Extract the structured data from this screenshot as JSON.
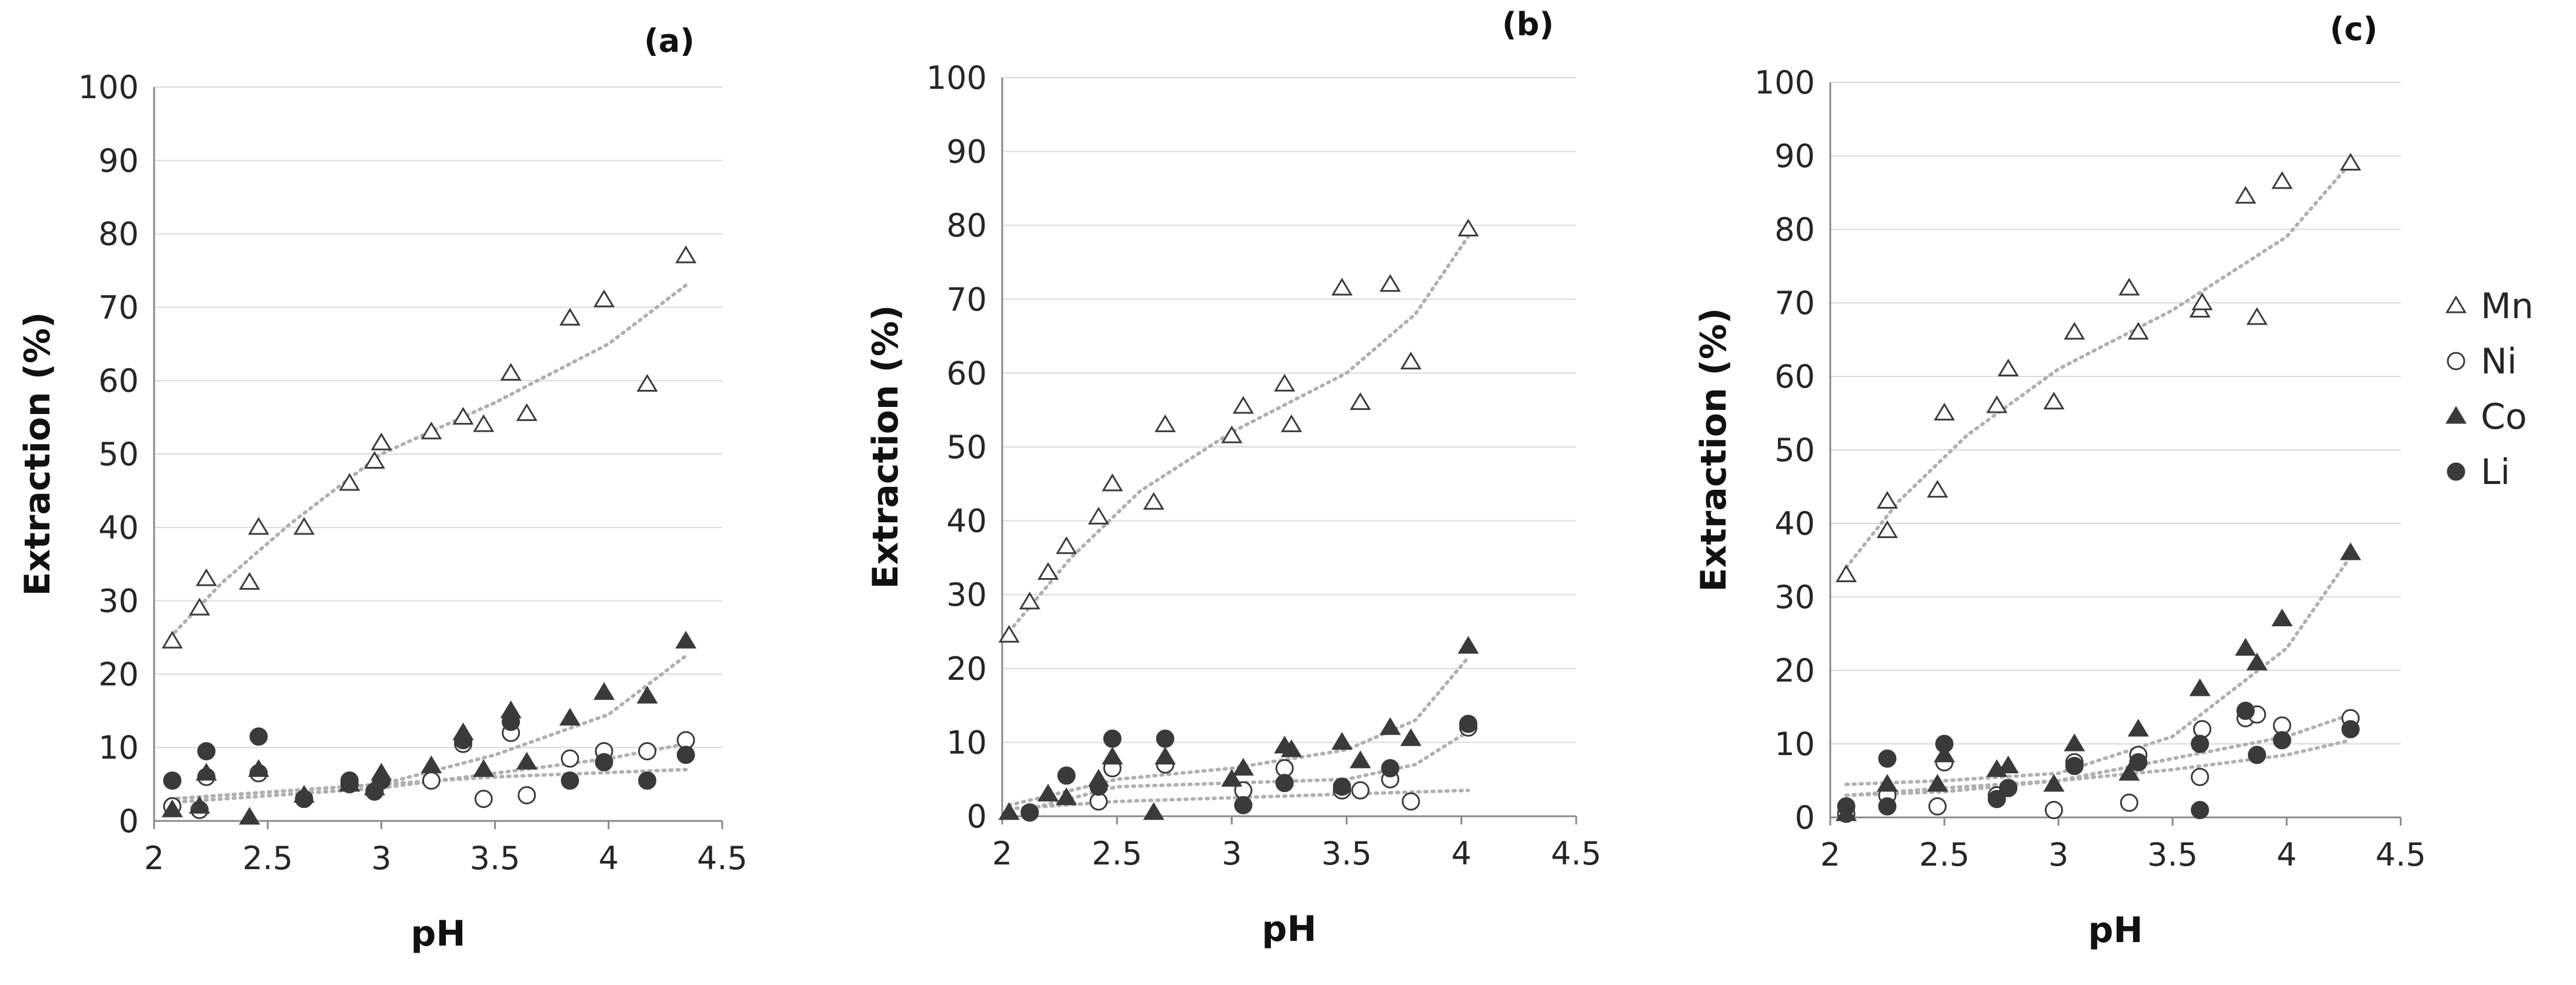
{
  "legend": {
    "entries": [
      {
        "label": "Mn",
        "marker": "open-triangle"
      },
      {
        "label": "Ni",
        "marker": "open-circle"
      },
      {
        "label": "Co",
        "marker": "filled-triangle"
      },
      {
        "label": "Li",
        "marker": "filled-circle"
      }
    ]
  },
  "colors": {
    "marker": "#3a3a3a",
    "trendline": "#b0b0b0",
    "grid": "#d9d9d9",
    "axis": "#888888"
  },
  "chart_data": [
    {
      "type": "scatter",
      "panel_label": "(a)",
      "xlabel": "pH",
      "ylabel": "Extraction (%)",
      "xlim": [
        2,
        4.5
      ],
      "ylim": [
        0,
        100
      ],
      "xticks": [
        2,
        2.5,
        3,
        3.5,
        4,
        4.5
      ],
      "yticks": [
        0,
        10,
        20,
        30,
        40,
        50,
        60,
        70,
        80,
        90,
        100
      ],
      "grid": "horizontal",
      "trendlines": "dotted polynomial",
      "series": [
        {
          "name": "Mn",
          "x": [
            2.08,
            2.2,
            2.23,
            2.42,
            2.46,
            2.66,
            2.86,
            2.97,
            3.0,
            3.22,
            3.36,
            3.45,
            3.57,
            3.64,
            3.83,
            3.98,
            4.17,
            4.34
          ],
          "y": [
            24.5,
            29,
            33,
            32.5,
            40,
            40,
            46,
            49,
            51.5,
            53,
            55,
            54,
            61,
            55.5,
            68.5,
            71,
            59.5,
            77
          ]
        },
        {
          "name": "Ni",
          "x": [
            2.08,
            2.2,
            2.23,
            2.46,
            2.66,
            2.86,
            2.97,
            3.0,
            3.22,
            3.36,
            3.45,
            3.57,
            3.64,
            3.83,
            3.98,
            4.17,
            4.34
          ],
          "y": [
            2,
            1.5,
            6,
            6.5,
            3,
            5,
            4,
            5.5,
            5.5,
            10.5,
            3,
            12,
            3.5,
            8.5,
            9.5,
            9.5,
            11
          ]
        },
        {
          "name": "Co",
          "x": [
            2.08,
            2.2,
            2.23,
            2.42,
            2.46,
            2.66,
            2.86,
            2.97,
            3.0,
            3.22,
            3.36,
            3.45,
            3.57,
            3.64,
            3.83,
            3.98,
            4.17,
            4.34
          ],
          "y": [
            1.5,
            2,
            6.5,
            0.5,
            7,
            3.5,
            5,
            4.5,
            6.5,
            7.5,
            12,
            7,
            15,
            8,
            14,
            17.5,
            17,
            24.5
          ]
        },
        {
          "name": "Li",
          "x": [
            2.08,
            2.23,
            2.46,
            2.66,
            2.86,
            2.97,
            3.0,
            3.36,
            3.57,
            3.83,
            3.98,
            4.17,
            4.34
          ],
          "y": [
            5.5,
            9.5,
            11.5,
            3,
            5.5,
            4,
            5.5,
            11,
            13.5,
            5.5,
            8,
            5.5,
            9
          ]
        }
      ],
      "trends": {
        "Mn": [
          [
            2.07,
            25
          ],
          [
            2.3,
            32.5
          ],
          [
            2.6,
            40.5
          ],
          [
            3.0,
            50
          ],
          [
            3.5,
            57
          ],
          [
            4.0,
            65
          ],
          [
            4.34,
            73
          ]
        ],
        "Co": [
          [
            2.07,
            3
          ],
          [
            3.0,
            5
          ],
          [
            3.5,
            9
          ],
          [
            4.0,
            14.5
          ],
          [
            4.34,
            22.5
          ]
        ],
        "Ni": [
          [
            2.07,
            2.5
          ],
          [
            3.0,
            4.5
          ],
          [
            3.5,
            6.5
          ],
          [
            4.0,
            8.5
          ],
          [
            4.34,
            10.5
          ]
        ],
        "Li": [
          [
            2.07,
            3
          ],
          [
            3.0,
            5
          ],
          [
            3.5,
            6
          ],
          [
            4.34,
            7
          ]
        ]
      }
    },
    {
      "type": "scatter",
      "panel_label": "(b)",
      "xlabel": "pH",
      "ylabel": "Extraction (%)",
      "xlim": [
        2,
        4.5
      ],
      "ylim": [
        0,
        100
      ],
      "xticks": [
        2,
        2.5,
        3,
        3.5,
        4,
        4.5
      ],
      "yticks": [
        0,
        10,
        20,
        30,
        40,
        50,
        60,
        70,
        80,
        90,
        100
      ],
      "grid": "horizontal",
      "trendlines": "dotted polynomial",
      "series": [
        {
          "name": "Mn",
          "x": [
            2.03,
            2.12,
            2.2,
            2.28,
            2.42,
            2.48,
            2.66,
            2.71,
            3.0,
            3.05,
            3.23,
            3.26,
            3.48,
            3.56,
            3.69,
            3.78,
            4.03
          ],
          "y": [
            24.5,
            29,
            33,
            36.5,
            40.5,
            45,
            42.5,
            53,
            51.5,
            55.5,
            58.5,
            53,
            71.5,
            56,
            72,
            61.5,
            79.5
          ]
        },
        {
          "name": "Ni",
          "x": [
            2.12,
            2.42,
            2.48,
            2.71,
            3.05,
            3.23,
            3.48,
            3.56,
            3.69,
            3.78,
            4.03
          ],
          "y": [
            0.5,
            2,
            6.5,
            7,
            3.5,
            6.5,
            3.5,
            3.5,
            5,
            2,
            12
          ]
        },
        {
          "name": "Co",
          "x": [
            2.03,
            2.2,
            2.28,
            2.42,
            2.48,
            2.66,
            2.71,
            3.0,
            3.05,
            3.23,
            3.26,
            3.48,
            3.56,
            3.69,
            3.78,
            4.03
          ],
          "y": [
            0.5,
            3,
            2.5,
            5,
            8,
            0.5,
            8,
            5,
            6.5,
            9.5,
            9,
            10,
            7.5,
            12,
            10.5,
            23
          ]
        },
        {
          "name": "Li",
          "x": [
            2.12,
            2.28,
            2.42,
            2.48,
            2.71,
            3.05,
            3.23,
            3.48,
            3.69,
            4.03
          ],
          "y": [
            0.5,
            5.5,
            4,
            10.5,
            10.5,
            1.5,
            4.5,
            4,
            6.5,
            12.5
          ]
        }
      ],
      "trends": {
        "Mn": [
          [
            2.03,
            25
          ],
          [
            2.3,
            35
          ],
          [
            2.6,
            44
          ],
          [
            3.0,
            52
          ],
          [
            3.5,
            60
          ],
          [
            3.8,
            68
          ],
          [
            4.03,
            78.5
          ]
        ],
        "Co": [
          [
            2.03,
            1.5
          ],
          [
            2.5,
            5
          ],
          [
            3.0,
            6.5
          ],
          [
            3.5,
            9
          ],
          [
            3.8,
            13
          ],
          [
            4.03,
            21.5
          ]
        ],
        "Ni": [
          [
            2.03,
            1
          ],
          [
            2.5,
            2
          ],
          [
            3.0,
            2.5
          ],
          [
            3.5,
            3
          ],
          [
            4.03,
            3.5
          ]
        ],
        "Li": [
          [
            2.12,
            1
          ],
          [
            2.5,
            4
          ],
          [
            3.0,
            4.5
          ],
          [
            3.5,
            5
          ],
          [
            3.8,
            7
          ],
          [
            4.03,
            11.5
          ]
        ]
      }
    },
    {
      "type": "scatter",
      "panel_label": "(c)",
      "xlabel": "pH",
      "ylabel": "Extraction (%)",
      "xlim": [
        2,
        4.5
      ],
      "ylim": [
        0,
        100
      ],
      "xticks": [
        2,
        2.5,
        3,
        3.5,
        4,
        4.5
      ],
      "yticks": [
        0,
        10,
        20,
        30,
        40,
        50,
        60,
        70,
        80,
        90,
        100
      ],
      "grid": "horizontal",
      "trendlines": "dotted polynomial",
      "series": [
        {
          "name": "Mn",
          "x": [
            2.07,
            2.25,
            2.25,
            2.47,
            2.5,
            2.73,
            2.78,
            2.98,
            3.07,
            3.31,
            3.35,
            3.62,
            3.63,
            3.82,
            3.87,
            3.98,
            4.28
          ],
          "y": [
            33,
            43,
            39,
            44.5,
            55,
            56,
            61,
            56.5,
            66,
            72,
            66,
            69,
            70,
            84.5,
            68,
            86.5,
            89
          ]
        },
        {
          "name": "Ni",
          "x": [
            2.07,
            2.25,
            2.47,
            2.5,
            2.73,
            2.78,
            2.98,
            3.07,
            3.31,
            3.35,
            3.62,
            3.63,
            3.82,
            3.87,
            3.98,
            4.28
          ],
          "y": [
            0.5,
            3,
            1.5,
            7.5,
            3,
            4,
            1,
            7.5,
            2,
            8.5,
            5.5,
            12,
            13.5,
            14,
            12.5,
            13.5
          ]
        },
        {
          "name": "Co",
          "x": [
            2.07,
            2.25,
            2.47,
            2.5,
            2.73,
            2.78,
            2.98,
            3.07,
            3.31,
            3.35,
            3.62,
            3.82,
            3.87,
            3.98,
            4.28
          ],
          "y": [
            0.5,
            4.5,
            4.5,
            8.5,
            6.5,
            7,
            4.5,
            10,
            6,
            12,
            17.5,
            23,
            21,
            27,
            36
          ]
        },
        {
          "name": "Li",
          "x": [
            2.07,
            2.25,
            2.25,
            2.5,
            2.73,
            2.78,
            3.07,
            3.35,
            3.62,
            3.62,
            3.82,
            3.87,
            3.98,
            4.28
          ],
          "y": [
            1.5,
            8,
            1.5,
            10,
            2.5,
            4,
            7,
            7.5,
            1,
            10,
            14.5,
            8.5,
            10.5,
            12
          ]
        }
      ],
      "trends": {
        "Mn": [
          [
            2.07,
            34
          ],
          [
            2.3,
            43
          ],
          [
            2.6,
            52
          ],
          [
            3.0,
            61
          ],
          [
            3.5,
            69
          ],
          [
            4.0,
            79
          ],
          [
            4.28,
            89
          ]
        ],
        "Co": [
          [
            2.07,
            4.5
          ],
          [
            2.5,
            5
          ],
          [
            3.0,
            6
          ],
          [
            3.5,
            11
          ],
          [
            4.0,
            23
          ],
          [
            4.28,
            35.5
          ]
        ],
        "Ni": [
          [
            2.07,
            3
          ],
          [
            2.5,
            3.5
          ],
          [
            3.0,
            5
          ],
          [
            3.5,
            8
          ],
          [
            4.0,
            11
          ],
          [
            4.28,
            14
          ]
        ],
        "Li": [
          [
            2.07,
            3
          ],
          [
            2.5,
            4
          ],
          [
            3.0,
            5
          ],
          [
            3.5,
            6.5
          ],
          [
            4.0,
            8.5
          ],
          [
            4.28,
            10.5
          ]
        ]
      }
    }
  ]
}
